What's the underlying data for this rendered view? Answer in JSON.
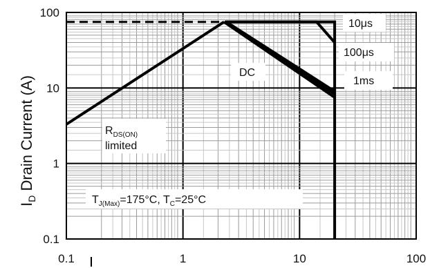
{
  "chart_data": {
    "type": "line",
    "xscale": "log",
    "yscale": "log",
    "xlim": [
      0.1,
      100
    ],
    "ylim": [
      0.1,
      100
    ],
    "grid": true,
    "ylabel": {
      "main": "I",
      "sub": "D",
      "rest": " Drain Current (A)"
    },
    "xlabel": "",
    "x_ticks": [
      "0.1",
      "1",
      "10",
      "100"
    ],
    "y_ticks": [
      "0.1",
      "1",
      "10",
      "100"
    ],
    "current_limit": 75,
    "series": [
      {
        "points": [
          [
            0.1,
            3.3
          ],
          [
            2.25,
            75
          ]
        ]
      },
      {
        "points": [
          [
            2.25,
            75
          ],
          [
            20,
            7.5
          ]
        ]
      },
      {
        "points": [
          [
            2.3,
            75
          ],
          [
            20,
            8.3
          ]
        ]
      },
      {
        "points": [
          [
            2.35,
            75
          ],
          [
            20,
            9.0
          ]
        ]
      },
      {
        "points": [
          [
            2.3,
            75
          ],
          [
            14,
            75
          ],
          [
            20,
            40
          ]
        ]
      },
      {
        "points": [
          [
            2.3,
            75
          ],
          [
            20,
            75
          ],
          [
            20,
            0.1
          ]
        ]
      },
      {
        "points": [
          [
            0.1,
            75
          ],
          [
            2.2,
            75
          ]
        ],
        "style": "dashed"
      }
    ],
    "annotations": {
      "t10us": "10μs",
      "t100us": "100μs",
      "t1ms": "1ms",
      "dc": "DC",
      "rds_main": "R",
      "rds_sub": "DS(ON)",
      "rds_limited": "limited",
      "cond_t": "T",
      "cond_tsub": "J(Max)",
      "cond_tval": "=175°C, T",
      "cond_csub": "C",
      "cond_cval": "=25°C"
    }
  }
}
